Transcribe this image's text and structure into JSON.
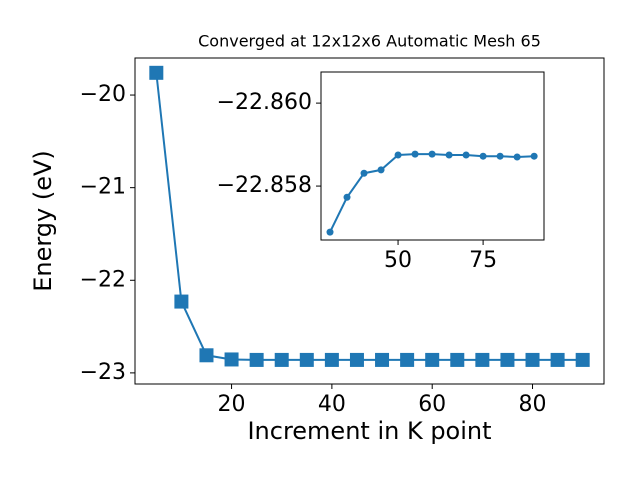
{
  "chart_data": [
    {
      "type": "line",
      "title": "Converged at 12x12x6 Automatic Mesh 65",
      "x_label": "Increment in K point",
      "y_label": "Energy (eV)",
      "x": [
        5,
        10,
        15,
        20,
        25,
        30,
        35,
        40,
        45,
        50,
        55,
        60,
        65,
        70,
        75,
        80,
        85,
        90
      ],
      "series": [
        {
          "color": "#1f77b4",
          "marker": "square",
          "values": [
            -19.76,
            -22.23,
            -22.81,
            -22.855,
            -22.86,
            -22.86,
            -22.86,
            -22.86,
            -22.86,
            -22.86,
            -22.86,
            -22.86,
            -22.86,
            -22.86,
            -22.86,
            -22.86,
            -22.86,
            -22.86
          ]
        }
      ],
      "xlim": [
        0.75,
        94.25
      ],
      "ylim": [
        -23.12,
        -19.6
      ],
      "xticks": [
        20,
        40,
        60,
        80
      ],
      "yticks": [
        {
          "value": -23,
          "label": "−23"
        },
        {
          "value": -22,
          "label": "−22"
        },
        {
          "value": -21,
          "label": "−21"
        },
        {
          "value": -20,
          "label": "−20"
        }
      ]
    },
    {
      "type": "line",
      "x": [
        30,
        35,
        40,
        45,
        50,
        55,
        60,
        65,
        70,
        75,
        80,
        85,
        90
      ],
      "series": [
        {
          "color": "#1f77b4",
          "marker": "circle",
          "values": [
            -22.85689,
            -22.85773,
            -22.85831,
            -22.85839,
            -22.85875,
            -22.85877,
            -22.85877,
            -22.85875,
            -22.85875,
            -22.85872,
            -22.85872,
            -22.8587,
            -22.85872
          ]
        }
      ],
      "xlim": [
        27.35,
        92.9
      ],
      "ylim": [
        -22.8567,
        -22.86075
      ],
      "xticks": [
        50,
        75
      ],
      "yticks": [
        {
          "value": -22.858,
          "label": "−22.858"
        },
        {
          "value": -22.86,
          "label": "−22.860"
        }
      ]
    }
  ]
}
